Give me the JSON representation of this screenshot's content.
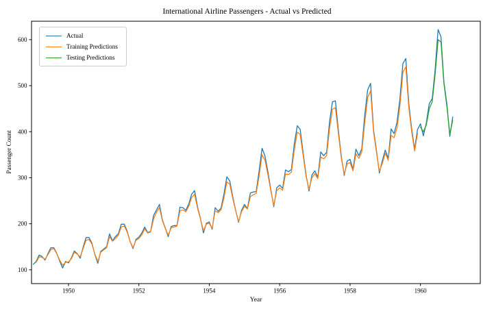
{
  "chart_data": {
    "type": "line",
    "title": "International Airline Passengers - Actual vs Predicted",
    "xlabel": "Year",
    "ylabel": "Passenger Count",
    "xlim": [
      1948.95,
      1961.7
    ],
    "ylim": [
      70,
      640
    ],
    "x_ticks": [
      1950,
      1952,
      1954,
      1956,
      1958,
      1960
    ],
    "y_ticks": [
      100,
      200,
      300,
      400,
      500,
      600
    ],
    "x_start": 1949.0,
    "x_step": 0.0833333,
    "grid": false,
    "legend_position": "upper-left",
    "series": [
      {
        "name": "Actual",
        "color": "#1f77b4",
        "x_offset_months": 0,
        "values": [
          112,
          118,
          132,
          129,
          121,
          135,
          148,
          148,
          136,
          119,
          104,
          118,
          115,
          126,
          141,
          135,
          125,
          149,
          170,
          170,
          158,
          133,
          114,
          140,
          145,
          150,
          178,
          163,
          172,
          178,
          199,
          199,
          184,
          162,
          146,
          166,
          171,
          180,
          193,
          181,
          183,
          218,
          230,
          242,
          209,
          191,
          172,
          194,
          196,
          196,
          236,
          235,
          229,
          243,
          264,
          272,
          237,
          211,
          180,
          201,
          204,
          188,
          235,
          227,
          234,
          264,
          302,
          293,
          259,
          229,
          203,
          229,
          242,
          233,
          267,
          269,
          270,
          315,
          364,
          347,
          312,
          274,
          237,
          278,
          284,
          277,
          317,
          313,
          318,
          374,
          413,
          405,
          355,
          306,
          271,
          306,
          315,
          301,
          356,
          348,
          355,
          422,
          465,
          467,
          404,
          347,
          305,
          336,
          340,
          318,
          362,
          348,
          363,
          435,
          491,
          505,
          404,
          359,
          310,
          337,
          360,
          342,
          406,
          396,
          420,
          472,
          548,
          559,
          463,
          407,
          362,
          405,
          417,
          391,
          419,
          461,
          472,
          535,
          622,
          606,
          508,
          461,
          390,
          432
        ]
      },
      {
        "name": "Training Predictions",
        "color": "#ff7f0e",
        "x_offset_months": 1,
        "values": [
          116,
          128,
          127,
          123,
          133,
          144,
          146,
          135,
          121,
          110,
          116,
          117,
          124,
          138,
          134,
          128,
          146,
          164,
          166,
          156,
          134,
          118,
          138,
          143,
          148,
          172,
          162,
          168,
          175,
          193,
          195,
          182,
          162,
          148,
          164,
          168,
          176,
          189,
          180,
          182,
          210,
          225,
          235,
          207,
          190,
          175,
          191,
          193,
          195,
          228,
          230,
          226,
          238,
          257,
          264,
          234,
          210,
          185,
          199,
          201,
          190,
          228,
          224,
          230,
          256,
          291,
          286,
          255,
          228,
          205,
          226,
          238,
          232,
          259,
          263,
          266,
          304,
          350,
          338,
          306,
          271,
          240,
          272,
          278,
          273,
          308,
          307,
          312,
          361,
          399,
          394,
          349,
          303,
          275,
          300,
          309,
          298,
          345,
          341,
          348,
          407,
          449,
          452,
          397,
          343,
          308,
          330,
          333,
          315,
          352,
          342,
          356,
          419,
          474,
          489,
          399,
          355,
          314,
          331,
          353,
          338,
          392,
          387,
          408,
          456,
          529,
          541,
          455,
          401,
          358,
          396
        ]
      },
      {
        "name": "Testing Predictions",
        "color": "#2ca02c",
        "x_offset_months": 132,
        "values": [
          410,
          400,
          415,
          450,
          465,
          525,
          600,
          595,
          505,
          455,
          395,
          425
        ]
      }
    ]
  }
}
